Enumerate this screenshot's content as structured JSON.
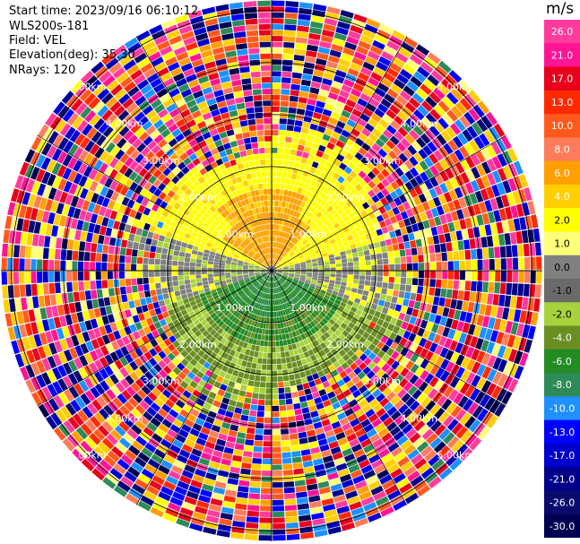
{
  "header": {
    "start_time": "Start time: 2023/09/16 06:10:12",
    "instrument": "WLS200s-181",
    "field": "Field: VEL",
    "elevation": "Elevation(deg): 35.30",
    "nrays": "NRays: 120"
  },
  "colorbar": {
    "unit": "m/s",
    "ticks": [
      "26.0",
      "21.0",
      "17.0",
      "13.0",
      "10.0",
      "8.0",
      "6.0",
      "4.0",
      "2.0",
      "1.0",
      "0.0",
      "-1.0",
      "-2.0",
      "-4.0",
      "-6.0",
      "-8.0",
      "-10.0",
      "-13.0",
      "-17.0",
      "-21.0",
      "-26.0",
      "-30.0"
    ],
    "colors": [
      "#ff3c9c",
      "#ff1493",
      "#e8001c",
      "#ff2a00",
      "#ff5a1e",
      "#ff7c5a",
      "#ffa000",
      "#ffcf00",
      "#ffff00",
      "#ffff7a",
      "#808080",
      "#6a6a6a",
      "#a8d23c",
      "#6b8e23",
      "#228b22",
      "#2e8b57",
      "#1e90ff",
      "#0000ff",
      "#0000cd",
      "#00008b",
      "#0a0a6e",
      "#000050"
    ]
  },
  "chart_data": {
    "type": "heatmap",
    "projection": "polar PPI",
    "field": "VEL",
    "units": "m/s",
    "n_rays": 120,
    "range_rings_km": [
      1.0,
      2.0,
      3.0,
      4.0,
      5.0
    ],
    "range_labels": [
      "1.00km",
      "2.00km",
      "3.00km",
      "4.00km",
      "5.00km"
    ],
    "color_range": [
      -30.0,
      26.0
    ],
    "max_range_km": 5.2
  }
}
